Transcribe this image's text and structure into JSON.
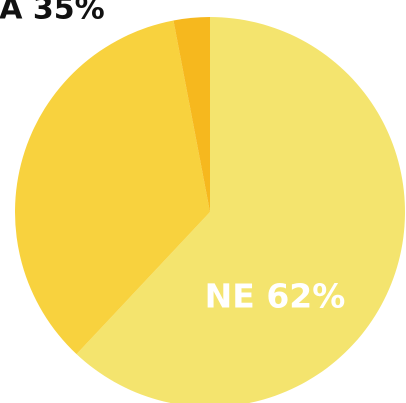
{
  "chart_data": {
    "type": "pie",
    "start_angle_deg": 0,
    "direction": "clockwise",
    "slices": [
      {
        "label": "NE",
        "value": 62,
        "display": "NE 62%",
        "color": "#F4E46E",
        "label_color": "#ffffff"
      },
      {
        "label": "",
        "value": 35,
        "display": "A 35%",
        "color": "#F8D23E",
        "label_color": "#111111"
      },
      {
        "label": "",
        "value": 3,
        "display": "",
        "color": "#F6B81E",
        "label_color": "#111111"
      }
    ]
  }
}
